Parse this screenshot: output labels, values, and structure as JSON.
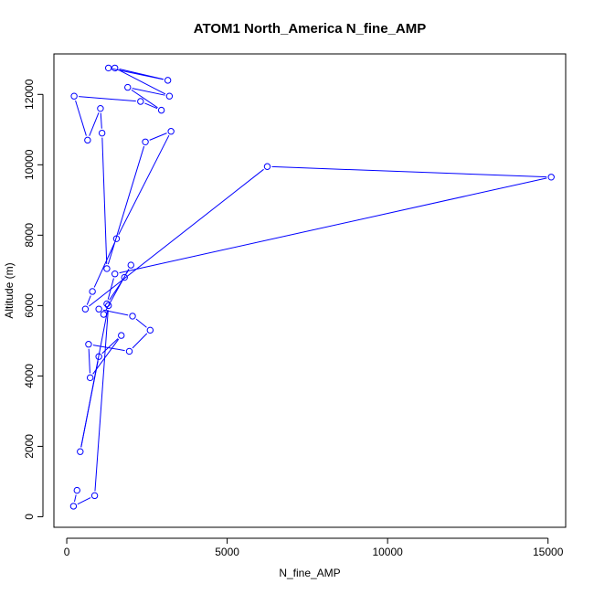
{
  "chart_data": {
    "type": "line",
    "title": "ATOM1 North_America N_fine_AMP",
    "xlabel": "N_fine_AMP",
    "ylabel": "Altitude (m)",
    "xlim": [
      -400,
      15550
    ],
    "ylim": [
      -300,
      13150
    ],
    "x_ticks": [
      0,
      5000,
      10000,
      15000
    ],
    "y_ticks": [
      0,
      2000,
      4000,
      6000,
      8000,
      10000,
      12000
    ],
    "color": "#0000ff",
    "grid": false,
    "legend": "none",
    "series": [
      {
        "x": [
          1300,
          3150,
          1500,
          3200,
          1900,
          2950,
          2300,
          230,
          650,
          1050,
          1100,
          1250,
          2450,
          3250,
          1550,
          800,
          580,
          6250,
          15100,
          1500,
          1250,
          1800,
          2000,
          1150,
          1000,
          2050,
          2600,
          1950,
          680,
          730,
          1700,
          1000,
          420,
          1300,
          870,
          210,
          320
        ],
        "y": [
          12750,
          12400,
          12750,
          11950,
          12200,
          11550,
          11800,
          11950,
          10700,
          11600,
          10900,
          7050,
          10650,
          10950,
          7900,
          6400,
          5900,
          9950,
          9650,
          6900,
          6050,
          6800,
          7150,
          5750,
          5900,
          5700,
          5300,
          4700,
          4900,
          3950,
          5150,
          4550,
          1850,
          6000,
          600,
          300,
          750
        ]
      }
    ]
  }
}
